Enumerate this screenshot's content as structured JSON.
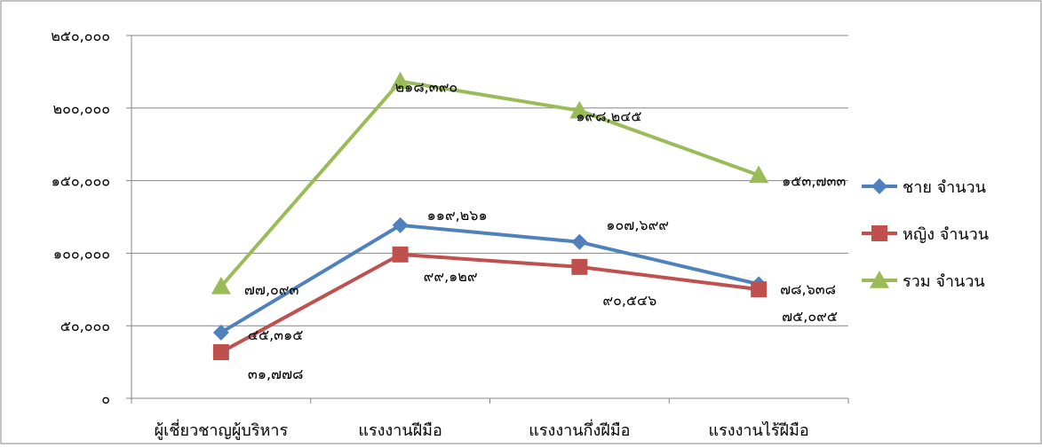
{
  "chart_data": {
    "type": "line",
    "title": "",
    "xlabel": "",
    "ylabel": "",
    "categories": [
      "ผู้เชี่ยวชาญผู้บริหาร",
      "แรงงานฝีมือ",
      "แรงงานกึ่งฝีมือ",
      "แรงงานไร้ฝีมือ"
    ],
    "ylim": [
      0,
      250000
    ],
    "yticks": [
      0,
      50000,
      100000,
      150000,
      200000,
      250000
    ],
    "ytick_labels": [
      "๐",
      "๕๐,๐๐๐",
      "๑๐๐,๐๐๐",
      "๑๕๐,๐๐๐",
      "๒๐๐,๐๐๐",
      "๒๕๐,๐๐๐"
    ],
    "grid": true,
    "legend_position": "right",
    "series": [
      {
        "name": "ชาย จำนวน",
        "color": "#4F81BD",
        "marker": "diamond",
        "values": [
          45315,
          119261,
          107699,
          78638
        ],
        "labels": [
          "๔๕,๓๑๕",
          "๑๑๙,๒๖๑",
          "๑๐๗,๖๙๙",
          "๗๘,๖๓๘"
        ]
      },
      {
        "name": "หญิง จำนวน",
        "color": "#C0504D",
        "marker": "square",
        "values": [
          31778,
          99129,
          90546,
          75095
        ],
        "labels": [
          "๓๑,๗๗๘",
          "๙๙,๑๒๙",
          "๙๐,๕๔๖",
          "๗๕,๐๙๕"
        ]
      },
      {
        "name": "รวม จำนวน",
        "color": "#9BBB59",
        "marker": "triangle",
        "values": [
          77093,
          218390,
          198245,
          153733
        ],
        "labels": [
          "๗๗,๐๙๓",
          "๒๑๘,๓๙๐",
          "๑๙๘,๒๔๕",
          "๑๕๓,๗๓๓"
        ]
      }
    ]
  }
}
